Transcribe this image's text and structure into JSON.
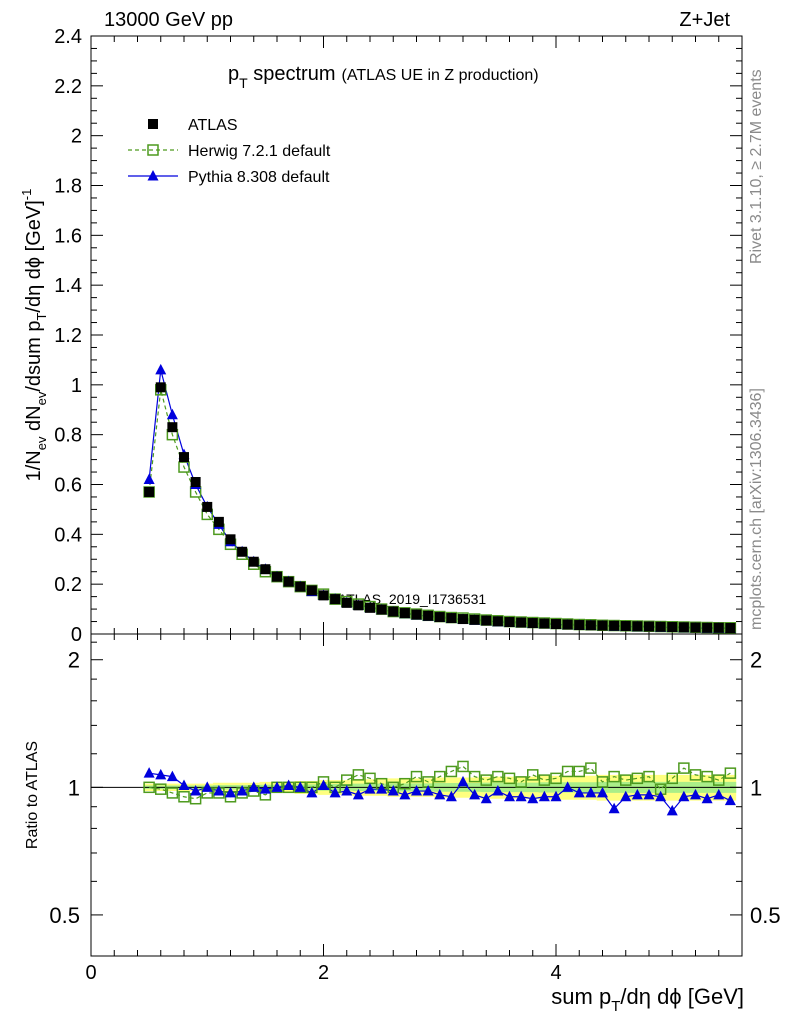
{
  "header": {
    "left": "13000 GeV pp",
    "right": "Z+Jet"
  },
  "side": {
    "rivet": "Rivet 3.1.10, ≥ 2.7M events",
    "mcplots": "mcplots.cern.ch [arXiv:1306.3436]"
  },
  "watermark": "ATLAS_2019_I1736531",
  "colors": {
    "atlas": "#000000",
    "herwig": "#4d9a1e",
    "pythia": "#0000dd",
    "band_outer": "#ffff80",
    "band_inner": "#aaee88"
  },
  "chart_data": [
    {
      "type": "line",
      "title_main": "p",
      "title_sub": "T",
      "title_rest": " spectrum",
      "title_note": "(ATLAS UE in Z production)",
      "ylabel_parts": [
        "1/N",
        "ev",
        " dN",
        "ev",
        "/dsum p",
        "T",
        "/dη dϕ  [GeV]",
        "-1"
      ],
      "xlim": [
        0,
        5.6
      ],
      "ylim": [
        0,
        2.4
      ],
      "y_ticks": [
        "0",
        "0.2",
        "0.4",
        "0.6",
        "0.8",
        "1",
        "1.2",
        "1.4",
        "1.6",
        "1.8",
        "2",
        "2.2",
        "2.4"
      ],
      "x": [
        0.5,
        0.6,
        0.7,
        0.8,
        0.9,
        1.0,
        1.1,
        1.2,
        1.3,
        1.4,
        1.5,
        1.6,
        1.7,
        1.8,
        1.9,
        2.0,
        2.1,
        2.2,
        2.3,
        2.4,
        2.5,
        2.6,
        2.7,
        2.8,
        2.9,
        3.0,
        3.1,
        3.2,
        3.3,
        3.4,
        3.5,
        3.6,
        3.7,
        3.8,
        3.9,
        4.0,
        4.1,
        4.2,
        4.3,
        4.4,
        4.5,
        4.6,
        4.7,
        4.8,
        4.9,
        5.0,
        5.1,
        5.2,
        5.3,
        5.4,
        5.5
      ],
      "legend": {
        "position": "top-left"
      },
      "series": [
        {
          "name": "ATLAS",
          "marker": "filled-square",
          "values": [
            0.57,
            0.99,
            0.83,
            0.71,
            0.61,
            0.51,
            0.45,
            0.38,
            0.33,
            0.29,
            0.26,
            0.23,
            0.21,
            0.19,
            0.175,
            0.155,
            0.14,
            0.125,
            0.115,
            0.105,
            0.098,
            0.09,
            0.084,
            0.078,
            0.073,
            0.068,
            0.064,
            0.06,
            0.057,
            0.054,
            0.051,
            0.048,
            0.046,
            0.044,
            0.042,
            0.04,
            0.038,
            0.036,
            0.035,
            0.034,
            0.033,
            0.032,
            0.031,
            0.03,
            0.029,
            0.028,
            0.027,
            0.026,
            0.025,
            0.025,
            0.024
          ]
        },
        {
          "name": "Herwig 7.2.1 default",
          "marker": "open-square",
          "values": [
            0.57,
            0.98,
            0.8,
            0.67,
            0.57,
            0.48,
            0.42,
            0.36,
            0.32,
            0.28,
            0.25,
            0.23,
            0.21,
            0.19,
            0.175,
            0.16,
            0.14,
            0.13,
            0.12,
            0.11,
            0.1,
            0.09,
            0.085,
            0.08,
            0.075,
            0.07,
            0.066,
            0.064,
            0.06,
            0.056,
            0.053,
            0.05,
            0.048,
            0.046,
            0.044,
            0.042,
            0.04,
            0.038,
            0.037,
            0.035,
            0.034,
            0.033,
            0.032,
            0.031,
            0.03,
            0.029,
            0.028,
            0.027,
            0.026,
            0.025,
            0.025
          ]
        },
        {
          "name": "Pythia 8.308 default",
          "marker": "filled-triangle",
          "values": [
            0.62,
            1.06,
            0.88,
            0.72,
            0.6,
            0.51,
            0.44,
            0.37,
            0.33,
            0.29,
            0.26,
            0.23,
            0.21,
            0.19,
            0.17,
            0.155,
            0.14,
            0.125,
            0.115,
            0.105,
            0.097,
            0.089,
            0.082,
            0.076,
            0.071,
            0.066,
            0.062,
            0.058,
            0.055,
            0.052,
            0.049,
            0.046,
            0.044,
            0.042,
            0.04,
            0.038,
            0.036,
            0.035,
            0.034,
            0.032,
            0.031,
            0.03,
            0.029,
            0.028,
            0.027,
            0.026,
            0.025,
            0.024,
            0.023,
            0.023,
            0.022
          ]
        }
      ]
    },
    {
      "type": "line",
      "ylabel": "Ratio to ATLAS",
      "xlabel_parts": [
        "sum p",
        "T",
        "/dη dϕ [GeV]"
      ],
      "x_ticks": [
        "0",
        "2",
        "4"
      ],
      "y_ticks": [
        "0.5",
        "1",
        "2"
      ],
      "xlim": [
        0,
        5.6
      ],
      "ylim": [
        0.4,
        2.3
      ],
      "y_scale": "log",
      "x": [
        0.5,
        0.6,
        0.7,
        0.8,
        0.9,
        1.0,
        1.1,
        1.2,
        1.3,
        1.4,
        1.5,
        1.6,
        1.7,
        1.8,
        1.9,
        2.0,
        2.1,
        2.2,
        2.3,
        2.4,
        2.5,
        2.6,
        2.7,
        2.8,
        2.9,
        3.0,
        3.1,
        3.2,
        3.3,
        3.4,
        3.5,
        3.6,
        3.7,
        3.8,
        3.9,
        4.0,
        4.1,
        4.2,
        4.3,
        4.4,
        4.5,
        4.6,
        4.7,
        4.8,
        4.9,
        5.0,
        5.1,
        5.2,
        5.3,
        5.4,
        5.5
      ],
      "band_outer": [
        0.02,
        0.02,
        0.02,
        0.02,
        0.02,
        0.02,
        0.025,
        0.025,
        0.025,
        0.025,
        0.03,
        0.03,
        0.03,
        0.035,
        0.035,
        0.04,
        0.04,
        0.04,
        0.045,
        0.045,
        0.045,
        0.05,
        0.05,
        0.05,
        0.05,
        0.055,
        0.055,
        0.055,
        0.055,
        0.06,
        0.06,
        0.06,
        0.06,
        0.06,
        0.065,
        0.065,
        0.065,
        0.065,
        0.065,
        0.07,
        0.07,
        0.07,
        0.07,
        0.07,
        0.07,
        0.07,
        0.07,
        0.07,
        0.07,
        0.07,
        0.07
      ],
      "band_inner": [
        0.01,
        0.01,
        0.01,
        0.01,
        0.01,
        0.01,
        0.012,
        0.012,
        0.012,
        0.012,
        0.014,
        0.014,
        0.014,
        0.016,
        0.016,
        0.018,
        0.018,
        0.018,
        0.02,
        0.02,
        0.02,
        0.022,
        0.022,
        0.022,
        0.022,
        0.024,
        0.024,
        0.024,
        0.024,
        0.026,
        0.026,
        0.026,
        0.026,
        0.026,
        0.028,
        0.028,
        0.028,
        0.028,
        0.028,
        0.03,
        0.03,
        0.03,
        0.03,
        0.03,
        0.03,
        0.03,
        0.03,
        0.03,
        0.03,
        0.03,
        0.03
      ],
      "series": [
        {
          "name": "Herwig 7.2.1 default",
          "values": [
            1.0,
            0.99,
            0.97,
            0.95,
            0.94,
            0.97,
            0.97,
            0.95,
            0.97,
            0.98,
            0.96,
            1.0,
            1.0,
            1.0,
            1.0,
            1.03,
            1.0,
            1.04,
            1.07,
            1.05,
            1.02,
            1.0,
            1.02,
            1.06,
            1.03,
            1.06,
            1.09,
            1.12,
            1.06,
            1.04,
            1.06,
            1.05,
            1.03,
            1.07,
            1.04,
            1.05,
            1.09,
            1.09,
            1.11,
            1.03,
            1.06,
            1.04,
            1.05,
            1.06,
            0.99,
            1.05,
            1.11,
            1.07,
            1.06,
            1.04,
            1.08
          ]
        },
        {
          "name": "Pythia 8.308 default",
          "values": [
            1.08,
            1.07,
            1.06,
            1.01,
            0.98,
            1.0,
            0.98,
            0.97,
            0.98,
            1.0,
            0.99,
            1.0,
            1.01,
            1.0,
            0.97,
            1.01,
            0.97,
            0.98,
            0.96,
            0.99,
            0.99,
            0.98,
            0.96,
            0.98,
            0.98,
            0.96,
            0.95,
            1.03,
            0.96,
            0.94,
            0.98,
            0.95,
            0.95,
            0.94,
            0.95,
            0.95,
            1.0,
            0.97,
            0.97,
            0.97,
            0.89,
            0.95,
            0.96,
            0.96,
            0.95,
            0.88,
            0.95,
            0.96,
            0.94,
            0.96,
            0.93
          ]
        }
      ]
    }
  ]
}
